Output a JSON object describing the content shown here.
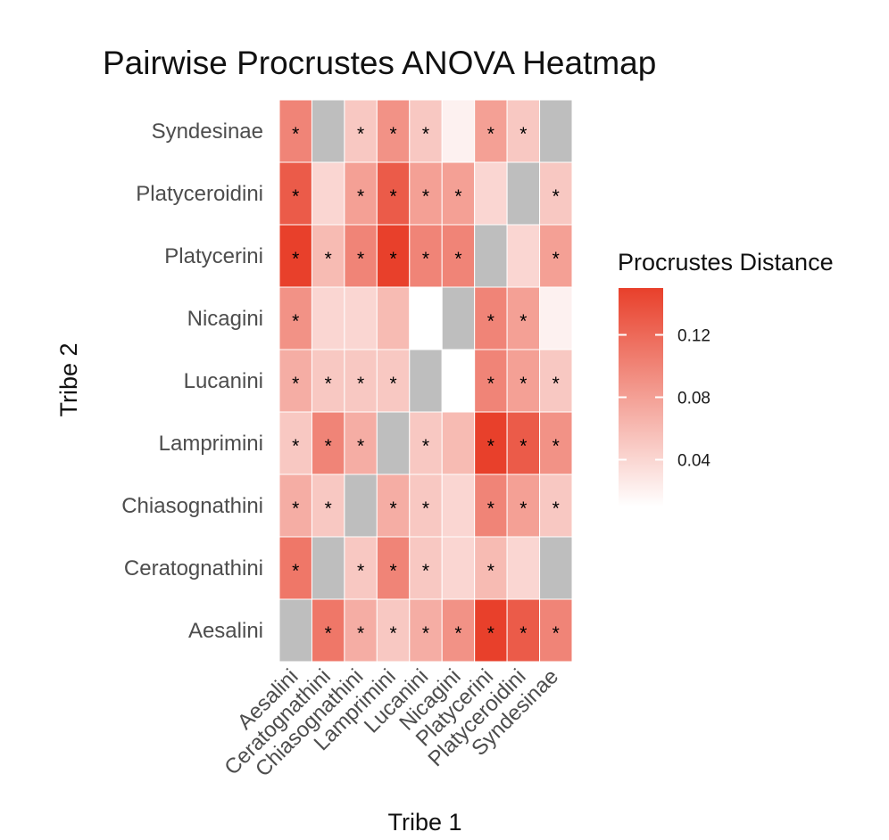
{
  "chart_data": {
    "type": "heatmap",
    "title": "Pairwise Procrustes ANOVA Heatmap",
    "xlabel": "Tribe 1",
    "ylabel": "Tribe 2",
    "x_categories": [
      "Aesalini",
      "Ceratognathini",
      "Chiasognathini",
      "Lamprimini",
      "Lucanini",
      "Nicagini",
      "Platycerini",
      "Platyceroidini",
      "Syndesinae"
    ],
    "y_categories": [
      "Aesalini",
      "Ceratognathini",
      "Chiasognathini",
      "Lamprimini",
      "Lucanini",
      "Nicagini",
      "Platycerini",
      "Platyceroidini",
      "Syndesinae"
    ],
    "values": [
      [
        null,
        0.11,
        0.07,
        0.05,
        0.07,
        0.09,
        0.15,
        0.13,
        0.1
      ],
      [
        0.11,
        null,
        0.05,
        0.1,
        0.05,
        0.04,
        0.06,
        0.04,
        null
      ],
      [
        0.07,
        0.05,
        null,
        0.07,
        0.05,
        0.04,
        0.1,
        0.08,
        0.05
      ],
      [
        0.05,
        0.1,
        0.07,
        null,
        0.05,
        0.06,
        0.15,
        0.13,
        0.09
      ],
      [
        0.07,
        0.05,
        0.05,
        0.05,
        null,
        0.01,
        0.1,
        0.08,
        0.05
      ],
      [
        0.09,
        0.04,
        0.04,
        0.06,
        0.01,
        null,
        0.1,
        0.08,
        0.02
      ],
      [
        0.15,
        0.06,
        0.1,
        0.15,
        0.1,
        0.1,
        null,
        0.04,
        0.08
      ],
      [
        0.13,
        0.04,
        0.08,
        0.13,
        0.08,
        0.08,
        0.04,
        null,
        0.05
      ],
      [
        0.1,
        null,
        0.05,
        0.09,
        0.05,
        0.02,
        0.08,
        0.05,
        null
      ]
    ],
    "significant": [
      [
        false,
        true,
        true,
        true,
        true,
        true,
        true,
        true,
        true
      ],
      [
        true,
        false,
        true,
        true,
        true,
        false,
        true,
        false,
        false
      ],
      [
        true,
        true,
        false,
        true,
        true,
        false,
        true,
        true,
        true
      ],
      [
        true,
        true,
        true,
        false,
        true,
        false,
        true,
        true,
        true
      ],
      [
        true,
        true,
        true,
        true,
        false,
        false,
        true,
        true,
        true
      ],
      [
        true,
        false,
        false,
        false,
        false,
        false,
        true,
        true,
        false
      ],
      [
        true,
        true,
        true,
        true,
        true,
        true,
        false,
        false,
        true
      ],
      [
        true,
        false,
        true,
        true,
        true,
        true,
        false,
        false,
        true
      ],
      [
        true,
        false,
        true,
        true,
        true,
        false,
        true,
        true,
        false
      ]
    ],
    "significance_marker": "*",
    "legend": {
      "title": "Procrustes Distance",
      "ticks": [
        0.04,
        0.08,
        0.12
      ],
      "tick_labels": [
        "0.04",
        "0.08",
        "0.12"
      ],
      "range": [
        0.01,
        0.15
      ],
      "position": "right"
    },
    "colors": {
      "low": "#ffffff",
      "high": "#e8402b",
      "na": "#bebebe",
      "cell_border": "#ffffff"
    },
    "grid": false
  }
}
